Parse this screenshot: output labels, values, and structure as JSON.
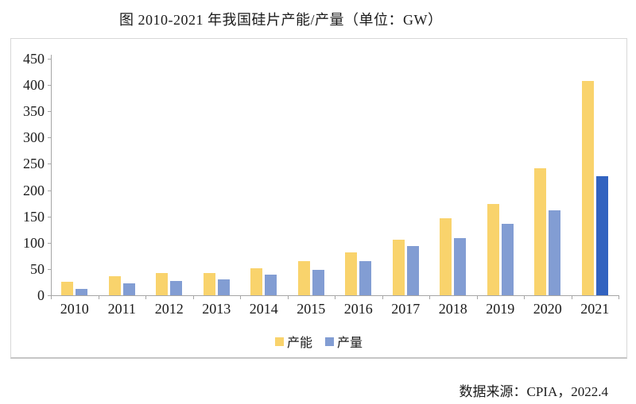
{
  "page": {
    "title": "图 2010-2021 年我国硅片产能/产量（单位：GW）",
    "source_note": "数据来源：CPIA，2022.4"
  },
  "chart_data": {
    "type": "bar",
    "title": "图 2010-2021 年我国硅片产能/产量（单位：GW）",
    "unit": "GW",
    "categories": [
      "2010",
      "2011",
      "2012",
      "2013",
      "2014",
      "2015",
      "2016",
      "2017",
      "2018",
      "2019",
      "2020",
      "2021"
    ],
    "series": [
      {
        "name": "产能",
        "color": "#F9D36C",
        "values": [
          25,
          37,
          42,
          43,
          51,
          65,
          82,
          106,
          147,
          174,
          241,
          408
        ]
      },
      {
        "name": "产量",
        "color": "#829DD3",
        "last_value_color": "#3263C0",
        "values": [
          12,
          22,
          27,
          30,
          40,
          49,
          65,
          93,
          108,
          136,
          161,
          227
        ]
      }
    ],
    "ylim": [
      0,
      450
    ],
    "yticks": [
      0,
      50,
      100,
      150,
      200,
      250,
      300,
      350,
      400,
      450
    ],
    "grid": false,
    "legend_position": "bottom-center",
    "legend": [
      "产能",
      "产量"
    ],
    "source": "数据来源：CPIA，2022.4",
    "colors": {
      "axis": "#a6a6a6",
      "box_border": "#d8d8d8",
      "text": "#1b1b1b"
    }
  }
}
